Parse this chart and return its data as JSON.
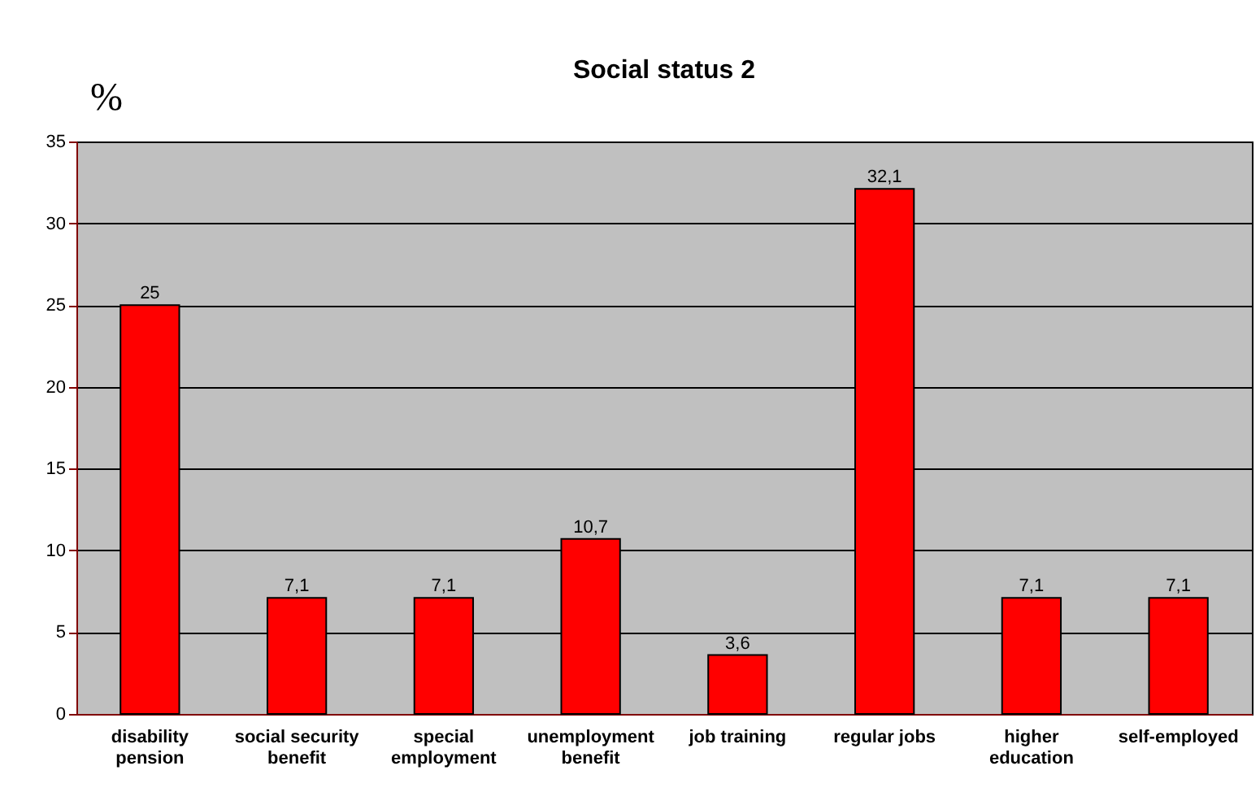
{
  "chart_data": {
    "type": "bar",
    "title": "Social status 2",
    "ylabel": "%",
    "categories": [
      "disability pension",
      "social security benefit",
      "special employment",
      "unemployment benefit",
      "job training",
      "regular jobs",
      "higher education",
      "self-employed"
    ],
    "values": [
      25,
      7.1,
      7.1,
      10.7,
      3.6,
      32.1,
      7.1,
      7.1
    ],
    "value_labels": [
      "25",
      "7,1",
      "7,1",
      "10,7",
      "3,6",
      "32,1",
      "7,1",
      "7,1"
    ],
    "color": "#ff0000",
    "ylim": [
      0,
      35
    ],
    "yticks": [
      0,
      5,
      10,
      15,
      20,
      25,
      30,
      35
    ],
    "grid": "y"
  }
}
